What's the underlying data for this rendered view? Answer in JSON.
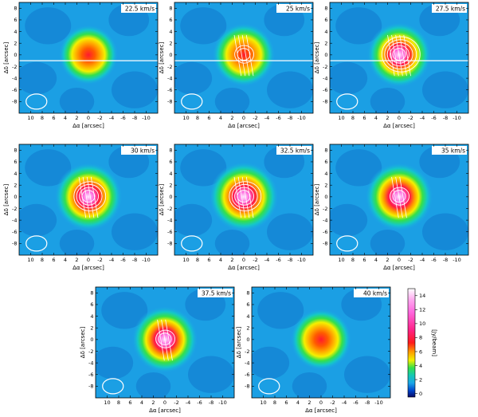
{
  "chart_data": {
    "type": "heatmap",
    "panels": [
      {
        "label": "22.5 km/s",
        "peak": 11.5,
        "contours": 0,
        "lines": 0,
        "hline": true
      },
      {
        "label": "25 km/s",
        "peak": 12.5,
        "contours": 2,
        "lines": 4,
        "hline": true
      },
      {
        "label": "27.5 km/s",
        "peak": 13.0,
        "contours": 5,
        "lines": 5,
        "hline": true
      },
      {
        "label": "30 km/s",
        "peak": 14.0,
        "contours": 4,
        "lines": 4,
        "hline": false
      },
      {
        "label": "32.5 km/s",
        "peak": 14.5,
        "contours": 4,
        "lines": 4,
        "hline": false
      },
      {
        "label": "35 km/s",
        "peak": 14.0,
        "contours": 2,
        "lines": 3,
        "hline": false
      },
      {
        "label": "37.5 km/s",
        "peak": 13.5,
        "contours": 2,
        "lines": 3,
        "hline": false
      },
      {
        "label": "40 km/s",
        "peak": 12.0,
        "contours": 0,
        "lines": 0,
        "hline": false
      }
    ],
    "xlabel": "Δα [arcsec]",
    "ylabel": "Δδ [arcsec]",
    "xlim": [
      12,
      -12
    ],
    "ylim": [
      -10,
      9
    ],
    "xticks": [
      10,
      8,
      6,
      4,
      2,
      0,
      -2,
      -4,
      -6,
      -8,
      -10
    ],
    "yticks": [
      8,
      6,
      4,
      2,
      0,
      -2,
      -4,
      -6,
      -8
    ],
    "colorbar": {
      "label": "[Jy/beam]",
      "ticks": [
        0,
        2,
        4,
        6,
        8,
        10,
        12,
        14
      ],
      "range": [
        -0.5,
        15
      ]
    }
  }
}
